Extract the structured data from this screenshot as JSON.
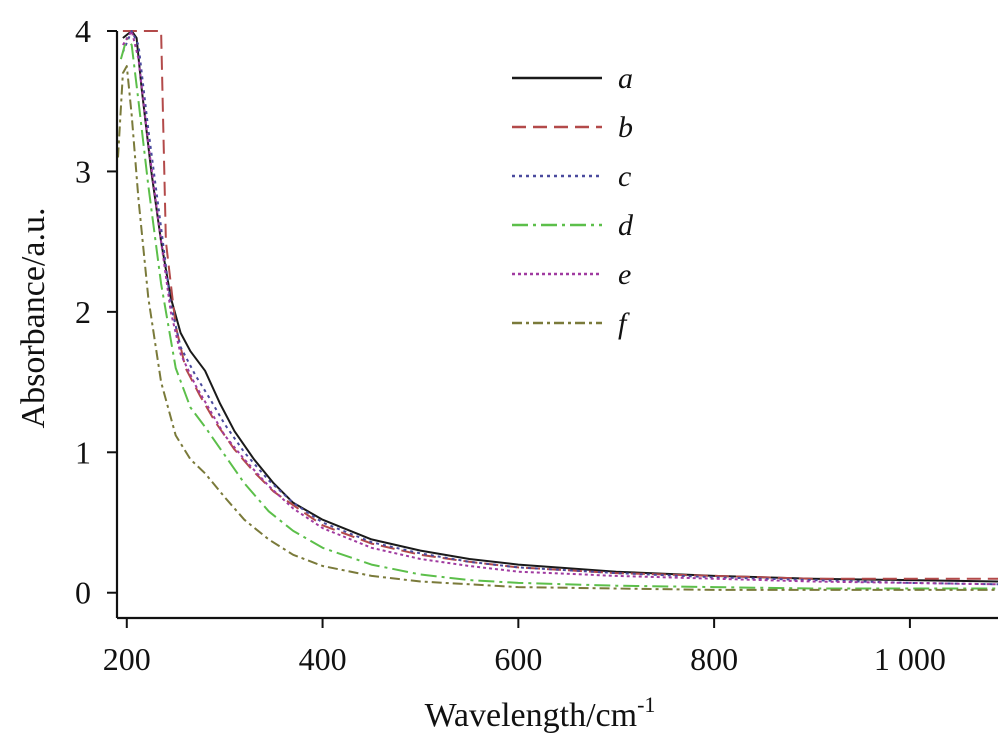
{
  "chart_data": {
    "type": "line",
    "xlabel": "Wavelength/cm",
    "xlabel_superscript": "-1",
    "ylabel": "Absorbance/a.u.",
    "xlim": [
      190,
      1090
    ],
    "ylim": [
      -0.18,
      4.0
    ],
    "x_ticks": [
      200,
      400,
      600,
      800,
      1000
    ],
    "x_tick_labels": [
      "200",
      "400",
      "600",
      "800",
      "1 000"
    ],
    "y_ticks": [
      0,
      1,
      2,
      3,
      4
    ],
    "y_tick_labels": [
      "0",
      "1",
      "2",
      "3",
      "4"
    ],
    "legend_position": "top-right",
    "series": [
      {
        "name": "a",
        "color": "#1a1a1a",
        "dash": "none",
        "points": [
          [
            196,
            3.95
          ],
          [
            205,
            4.0
          ],
          [
            210,
            3.95
          ],
          [
            215,
            3.6
          ],
          [
            225,
            3.0
          ],
          [
            235,
            2.5
          ],
          [
            245,
            2.1
          ],
          [
            255,
            1.85
          ],
          [
            265,
            1.72
          ],
          [
            280,
            1.58
          ],
          [
            295,
            1.35
          ],
          [
            310,
            1.15
          ],
          [
            330,
            0.95
          ],
          [
            350,
            0.78
          ],
          [
            370,
            0.64
          ],
          [
            400,
            0.52
          ],
          [
            450,
            0.38
          ],
          [
            500,
            0.3
          ],
          [
            550,
            0.24
          ],
          [
            600,
            0.2
          ],
          [
            700,
            0.15
          ],
          [
            800,
            0.12
          ],
          [
            900,
            0.1
          ],
          [
            1000,
            0.09
          ],
          [
            1090,
            0.08
          ]
        ]
      },
      {
        "name": "b",
        "color": "#b34a4a",
        "dash": "14,7",
        "points": [
          [
            196,
            4.0
          ],
          [
            230,
            4.0
          ],
          [
            235,
            4.0
          ],
          [
            237,
            3.4
          ],
          [
            240,
            2.5
          ],
          [
            250,
            1.9
          ],
          [
            260,
            1.6
          ],
          [
            275,
            1.4
          ],
          [
            290,
            1.22
          ],
          [
            310,
            1.02
          ],
          [
            330,
            0.86
          ],
          [
            350,
            0.72
          ],
          [
            375,
            0.6
          ],
          [
            400,
            0.48
          ],
          [
            450,
            0.35
          ],
          [
            500,
            0.27
          ],
          [
            550,
            0.22
          ],
          [
            600,
            0.18
          ],
          [
            700,
            0.14
          ],
          [
            800,
            0.12
          ],
          [
            900,
            0.1
          ],
          [
            1000,
            0.1
          ],
          [
            1090,
            0.1
          ]
        ]
      },
      {
        "name": "c",
        "color": "#4a4a9e",
        "dash": "3,4",
        "points": [
          [
            196,
            3.85
          ],
          [
            205,
            4.0
          ],
          [
            212,
            3.9
          ],
          [
            222,
            3.3
          ],
          [
            235,
            2.6
          ],
          [
            245,
            2.05
          ],
          [
            255,
            1.75
          ],
          [
            270,
            1.55
          ],
          [
            285,
            1.38
          ],
          [
            300,
            1.2
          ],
          [
            320,
            1.0
          ],
          [
            345,
            0.8
          ],
          [
            370,
            0.64
          ],
          [
            400,
            0.5
          ],
          [
            450,
            0.36
          ],
          [
            500,
            0.28
          ],
          [
            550,
            0.22
          ],
          [
            600,
            0.18
          ],
          [
            700,
            0.14
          ],
          [
            800,
            0.11
          ],
          [
            900,
            0.09
          ],
          [
            1000,
            0.07
          ],
          [
            1090,
            0.06
          ]
        ]
      },
      {
        "name": "d",
        "color": "#5cbf4a",
        "dash": "16,5,3,5",
        "points": [
          [
            194,
            3.8
          ],
          [
            200,
            3.95
          ],
          [
            205,
            3.9
          ],
          [
            212,
            3.5
          ],
          [
            222,
            2.9
          ],
          [
            235,
            2.2
          ],
          [
            250,
            1.6
          ],
          [
            265,
            1.32
          ],
          [
            280,
            1.18
          ],
          [
            300,
            0.98
          ],
          [
            320,
            0.78
          ],
          [
            345,
            0.58
          ],
          [
            370,
            0.44
          ],
          [
            400,
            0.32
          ],
          [
            450,
            0.2
          ],
          [
            500,
            0.13
          ],
          [
            550,
            0.09
          ],
          [
            600,
            0.07
          ],
          [
            700,
            0.05
          ],
          [
            800,
            0.04
          ],
          [
            900,
            0.03
          ],
          [
            1000,
            0.03
          ],
          [
            1090,
            0.03
          ]
        ]
      },
      {
        "name": "e",
        "color": "#a03aa0",
        "dash": "3,3",
        "points": [
          [
            196,
            3.9
          ],
          [
            205,
            4.0
          ],
          [
            212,
            3.8
          ],
          [
            222,
            3.2
          ],
          [
            235,
            2.5
          ],
          [
            245,
            2.0
          ],
          [
            255,
            1.7
          ],
          [
            270,
            1.48
          ],
          [
            285,
            1.3
          ],
          [
            300,
            1.12
          ],
          [
            320,
            0.95
          ],
          [
            345,
            0.76
          ],
          [
            370,
            0.6
          ],
          [
            400,
            0.46
          ],
          [
            450,
            0.32
          ],
          [
            500,
            0.24
          ],
          [
            550,
            0.19
          ],
          [
            600,
            0.15
          ],
          [
            700,
            0.12
          ],
          [
            800,
            0.1
          ],
          [
            900,
            0.08
          ],
          [
            1000,
            0.07
          ],
          [
            1090,
            0.06
          ]
        ]
      },
      {
        "name": "f",
        "color": "#7a7a3a",
        "dash": "10,4,3,4",
        "points": [
          [
            191,
            3.1
          ],
          [
            196,
            3.7
          ],
          [
            200,
            3.75
          ],
          [
            205,
            3.4
          ],
          [
            212,
            2.8
          ],
          [
            222,
            2.1
          ],
          [
            235,
            1.5
          ],
          [
            250,
            1.12
          ],
          [
            265,
            0.95
          ],
          [
            280,
            0.85
          ],
          [
            300,
            0.68
          ],
          [
            320,
            0.52
          ],
          [
            345,
            0.38
          ],
          [
            370,
            0.27
          ],
          [
            400,
            0.19
          ],
          [
            450,
            0.12
          ],
          [
            500,
            0.08
          ],
          [
            550,
            0.06
          ],
          [
            600,
            0.04
          ],
          [
            700,
            0.03
          ],
          [
            800,
            0.02
          ],
          [
            900,
            0.02
          ],
          [
            1000,
            0.02
          ],
          [
            1090,
            0.02
          ]
        ]
      }
    ]
  }
}
